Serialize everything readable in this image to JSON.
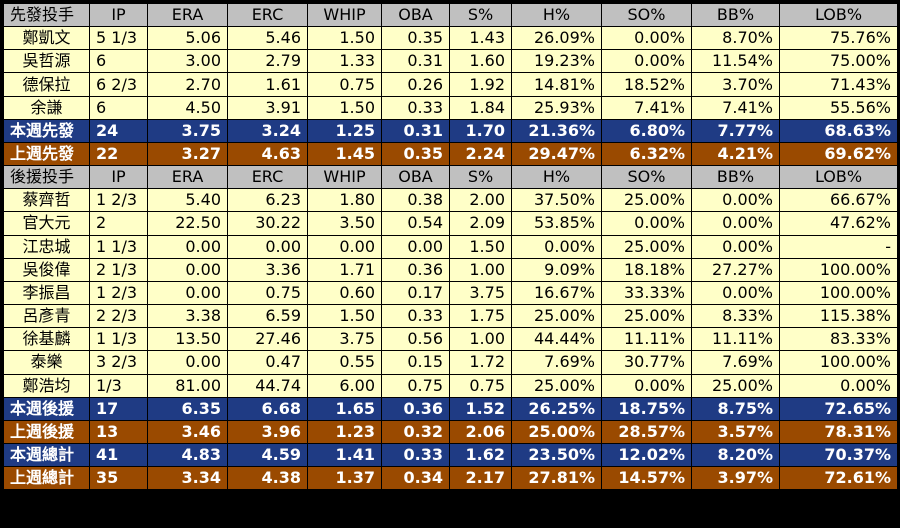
{
  "sections": [
    {
      "header": [
        "先發投手",
        "IP",
        "ERA",
        "ERC",
        "WHIP",
        "OBA",
        "S%",
        "H%",
        "SO%",
        "BB%",
        "LOB%"
      ],
      "rows": [
        [
          "鄭凱文",
          "5 1/3",
          "5.06",
          "5.46",
          "1.50",
          "0.35",
          "1.43",
          "26.09%",
          "0.00%",
          "8.70%",
          "75.76%"
        ],
        [
          "吳哲源",
          "6",
          "3.00",
          "2.79",
          "1.33",
          "0.31",
          "1.60",
          "19.23%",
          "0.00%",
          "11.54%",
          "75.00%"
        ],
        [
          "德保拉",
          "6 2/3",
          "2.70",
          "1.61",
          "0.75",
          "0.26",
          "1.92",
          "14.81%",
          "18.52%",
          "3.70%",
          "71.43%"
        ],
        [
          "余謙",
          "6",
          "4.50",
          "3.91",
          "1.50",
          "0.33",
          "1.84",
          "25.93%",
          "7.41%",
          "7.41%",
          "55.56%"
        ]
      ],
      "totals": [
        {
          "style": "blue",
          "cells": [
            "本週先發",
            "24",
            "3.75",
            "3.24",
            "1.25",
            "0.31",
            "1.70",
            "21.36%",
            "6.80%",
            "7.77%",
            "68.63%"
          ]
        },
        {
          "style": "brown",
          "cells": [
            "上週先發",
            "22",
            "3.27",
            "4.63",
            "1.45",
            "0.35",
            "2.24",
            "29.47%",
            "6.32%",
            "4.21%",
            "69.62%"
          ]
        }
      ]
    },
    {
      "header": [
        "後援投手",
        "IP",
        "ERA",
        "ERC",
        "WHIP",
        "OBA",
        "S%",
        "H%",
        "SO%",
        "BB%",
        "LOB%"
      ],
      "rows": [
        [
          "蔡齊哲",
          "1 2/3",
          "5.40",
          "6.23",
          "1.80",
          "0.38",
          "2.00",
          "37.50%",
          "25.00%",
          "0.00%",
          "66.67%"
        ],
        [
          "官大元",
          "2",
          "22.50",
          "30.22",
          "3.50",
          "0.54",
          "2.09",
          "53.85%",
          "0.00%",
          "0.00%",
          "47.62%"
        ],
        [
          "江忠城",
          "1 1/3",
          "0.00",
          "0.00",
          "0.00",
          "0.00",
          "1.50",
          "0.00%",
          "25.00%",
          "0.00%",
          "-"
        ],
        [
          "吳俊偉",
          "2 1/3",
          "0.00",
          "3.36",
          "1.71",
          "0.36",
          "1.00",
          "9.09%",
          "18.18%",
          "27.27%",
          "100.00%"
        ],
        [
          "李振昌",
          "1 2/3",
          "0.00",
          "0.75",
          "0.60",
          "0.17",
          "3.75",
          "16.67%",
          "33.33%",
          "0.00%",
          "100.00%"
        ],
        [
          "呂彥青",
          "2 2/3",
          "3.38",
          "6.59",
          "1.50",
          "0.33",
          "1.75",
          "25.00%",
          "25.00%",
          "8.33%",
          "115.38%"
        ],
        [
          "徐基麟",
          "1 1/3",
          "13.50",
          "27.46",
          "3.75",
          "0.56",
          "1.00",
          "44.44%",
          "11.11%",
          "11.11%",
          "83.33%"
        ],
        [
          "泰樂",
          "3 2/3",
          "0.00",
          "0.47",
          "0.55",
          "0.15",
          "1.72",
          "7.69%",
          "30.77%",
          "7.69%",
          "100.00%"
        ],
        [
          "鄭浩均",
          "1/3",
          "81.00",
          "44.74",
          "6.00",
          "0.75",
          "0.75",
          "25.00%",
          "0.00%",
          "25.00%",
          "0.00%"
        ]
      ],
      "totals": [
        {
          "style": "blue",
          "cells": [
            "本週後援",
            "17",
            "6.35",
            "6.68",
            "1.65",
            "0.36",
            "1.52",
            "26.25%",
            "18.75%",
            "8.75%",
            "72.65%"
          ]
        },
        {
          "style": "brown",
          "cells": [
            "上週後援",
            "13",
            "3.46",
            "3.96",
            "1.23",
            "0.32",
            "2.06",
            "25.00%",
            "28.57%",
            "3.57%",
            "78.31%"
          ]
        },
        {
          "style": "blue",
          "cells": [
            "本週總計",
            "41",
            "4.83",
            "4.59",
            "1.41",
            "0.33",
            "1.62",
            "23.50%",
            "12.02%",
            "8.20%",
            "70.37%"
          ]
        },
        {
          "style": "brown",
          "cells": [
            "上週總計",
            "35",
            "3.34",
            "4.38",
            "1.37",
            "0.34",
            "2.17",
            "27.81%",
            "14.57%",
            "3.97%",
            "72.61%"
          ]
        }
      ]
    }
  ],
  "colors": {
    "header_bg": "#c0c0c0",
    "row_bg": "#ffffc8",
    "blue_total": "#1f3b84",
    "brown_total": "#9a4a00"
  }
}
